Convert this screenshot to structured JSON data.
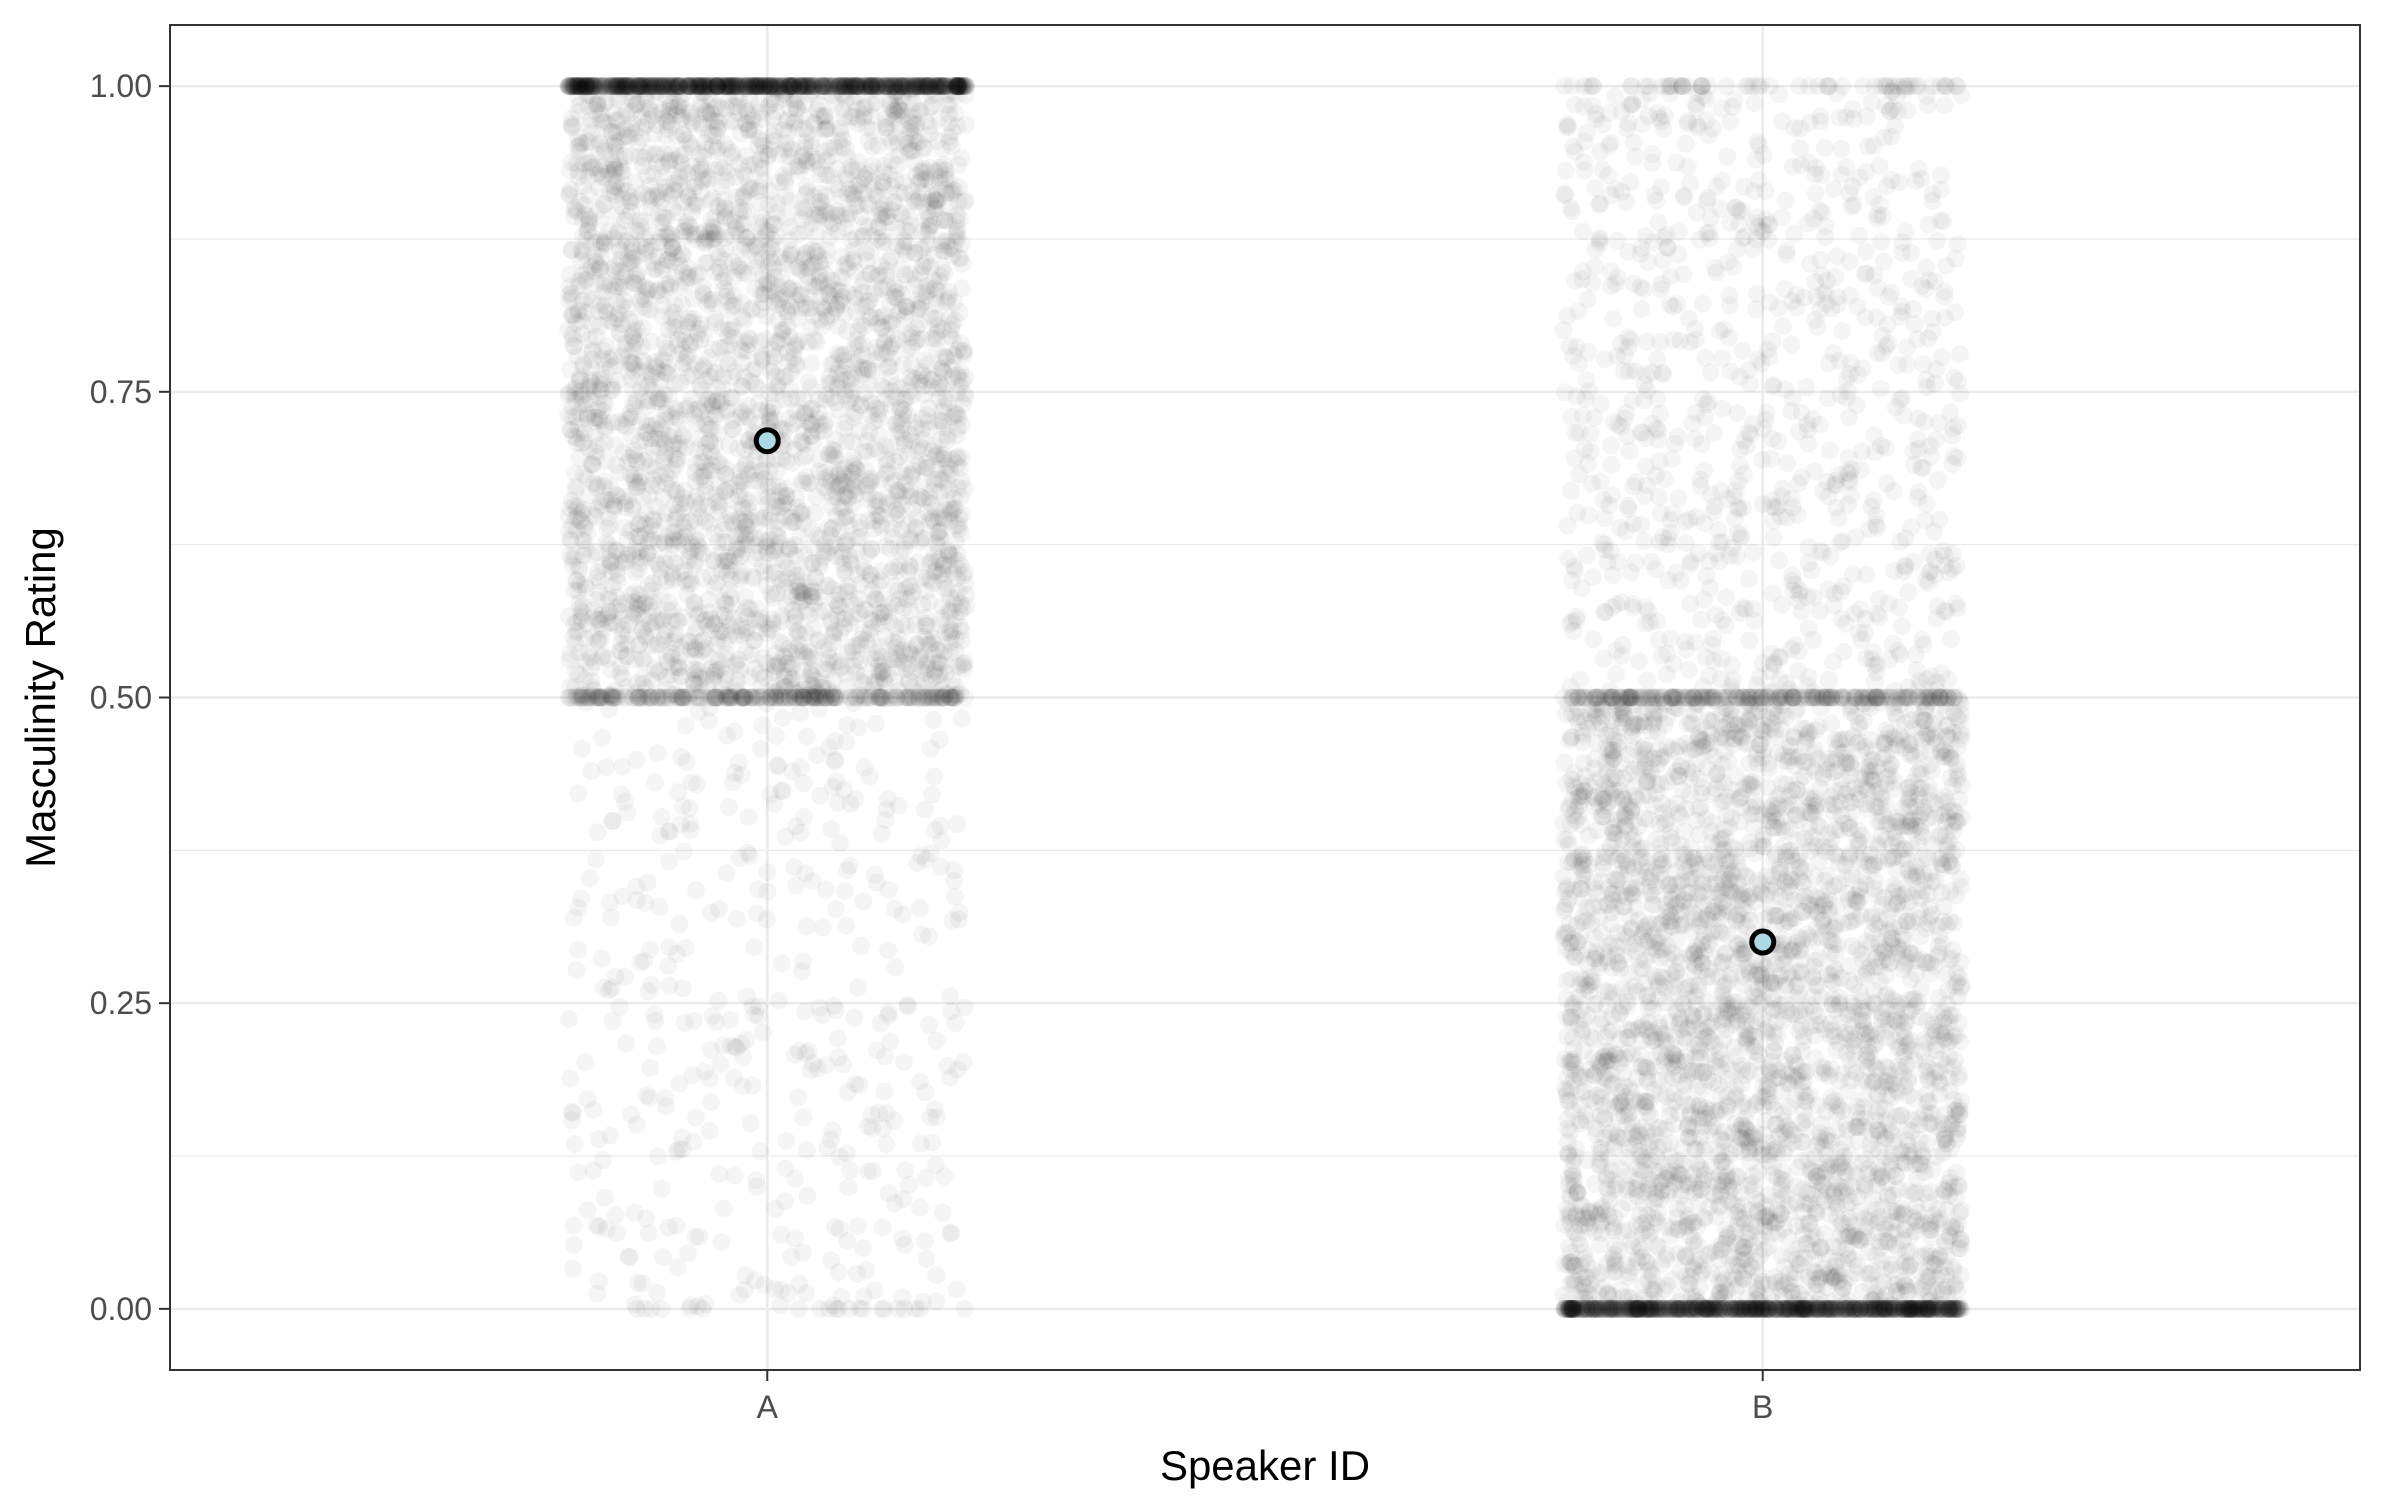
{
  "chart_data": {
    "type": "scatter",
    "title": "",
    "xlabel": "Speaker ID",
    "ylabel": "Masculinity Rating",
    "categories": [
      "A",
      "B"
    ],
    "ylim": [
      -0.05,
      1.05
    ],
    "y_ticks": [
      0.0,
      0.25,
      0.5,
      0.75,
      1.0
    ],
    "y_tick_labels": [
      "0.00",
      "0.25",
      "0.50",
      "0.75",
      "1.00"
    ],
    "grid": true,
    "legend": "none",
    "point_color": "#000000",
    "point_alpha": 0.04,
    "summary_fill": "#add8e6",
    "summary_stroke": "#000000",
    "series": [
      {
        "category": "A",
        "mean": 0.71,
        "jitter_halfwidth": 0.2,
        "rating_distribution": [
          {
            "value": 0.0,
            "count": 20
          },
          {
            "range": [
              0.0,
              0.5
            ],
            "count": 420
          },
          {
            "value": 0.5,
            "count": 260
          },
          {
            "range": [
              0.5,
              1.0
            ],
            "count": 3300
          },
          {
            "value": 1.0,
            "count": 900
          }
        ]
      },
      {
        "category": "B",
        "mean": 0.3,
        "jitter_halfwidth": 0.2,
        "rating_distribution": [
          {
            "value": 0.0,
            "count": 900
          },
          {
            "range": [
              0.0,
              0.5
            ],
            "count": 3300
          },
          {
            "value": 0.5,
            "count": 260
          },
          {
            "range": [
              0.5,
              1.0
            ],
            "count": 850
          },
          {
            "value": 1.0,
            "count": 60
          }
        ]
      }
    ]
  }
}
